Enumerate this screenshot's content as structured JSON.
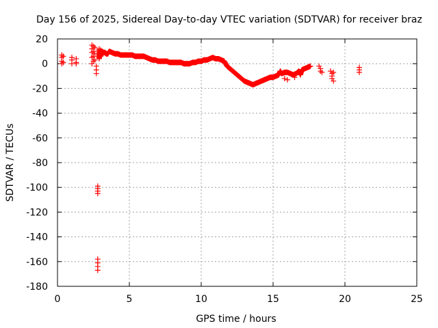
{
  "chart_data": {
    "type": "scatter",
    "title": "Day 156 of 2025, Sidereal Day-to-day VTEC variation (SDTVAR) for receiver braz",
    "xlabel": "GPS time / hours",
    "ylabel": "SDTVAR / TECUs",
    "xlim": [
      0,
      25
    ],
    "ylim": [
      -180,
      20
    ],
    "xticks": [
      0,
      5,
      10,
      15,
      20,
      25
    ],
    "yticks": [
      20,
      0,
      -20,
      -40,
      -60,
      -80,
      -100,
      -120,
      -140,
      -160,
      -180
    ],
    "grid": true,
    "marker": "plus",
    "color": "#ff0000",
    "series": [
      {
        "name": "SDTVAR",
        "points": [
          [
            0.3,
            7
          ],
          [
            0.3,
            5
          ],
          [
            0.3,
            2
          ],
          [
            0.3,
            0
          ],
          [
            0.4,
            6
          ],
          [
            0.4,
            1
          ],
          [
            1.0,
            3
          ],
          [
            1.0,
            0
          ],
          [
            1.0,
            5
          ],
          [
            1.3,
            4
          ],
          [
            1.3,
            1
          ],
          [
            1.3,
            0
          ],
          [
            2.4,
            15
          ],
          [
            2.4,
            12
          ],
          [
            2.4,
            9
          ],
          [
            2.4,
            5
          ],
          [
            2.4,
            0
          ],
          [
            2.5,
            14
          ],
          [
            2.5,
            10
          ],
          [
            2.5,
            6
          ],
          [
            2.5,
            2
          ],
          [
            2.6,
            13
          ],
          [
            2.6,
            8
          ],
          [
            2.6,
            3
          ],
          [
            2.7,
            -2
          ],
          [
            2.7,
            -5
          ],
          [
            2.7,
            -8
          ],
          [
            2.8,
            -99
          ],
          [
            2.8,
            -101
          ],
          [
            2.8,
            -103
          ],
          [
            2.8,
            -105
          ],
          [
            2.8,
            -158
          ],
          [
            2.8,
            -161
          ],
          [
            2.8,
            -164
          ],
          [
            2.8,
            -167
          ],
          [
            2.9,
            12
          ],
          [
            2.9,
            7
          ],
          [
            2.9,
            4
          ],
          [
            3.0,
            11
          ],
          [
            3.0,
            6
          ],
          [
            3.1,
            10
          ],
          [
            3.2,
            9
          ],
          [
            3.3,
            9
          ],
          [
            3.4,
            8
          ],
          [
            3.5,
            8
          ],
          [
            3.6,
            10
          ],
          [
            3.8,
            9
          ],
          [
            4.0,
            8
          ],
          [
            4.2,
            8
          ],
          [
            4.4,
            7
          ],
          [
            4.6,
            7
          ],
          [
            4.8,
            7
          ],
          [
            5.0,
            7
          ],
          [
            5.2,
            7
          ],
          [
            5.4,
            6
          ],
          [
            5.6,
            6
          ],
          [
            5.8,
            6
          ],
          [
            6.0,
            6
          ],
          [
            6.2,
            5
          ],
          [
            6.4,
            4
          ],
          [
            6.6,
            3
          ],
          [
            6.8,
            3
          ],
          [
            7.0,
            2
          ],
          [
            7.2,
            2
          ],
          [
            7.4,
            2
          ],
          [
            7.6,
            2
          ],
          [
            7.8,
            1
          ],
          [
            8.0,
            1
          ],
          [
            8.2,
            1
          ],
          [
            8.4,
            1
          ],
          [
            8.6,
            1
          ],
          [
            8.8,
            0
          ],
          [
            9.0,
            0
          ],
          [
            9.2,
            0
          ],
          [
            9.4,
            1
          ],
          [
            9.6,
            1
          ],
          [
            9.8,
            2
          ],
          [
            10.0,
            2
          ],
          [
            10.2,
            3
          ],
          [
            10.4,
            3
          ],
          [
            10.6,
            4
          ],
          [
            10.8,
            5
          ],
          [
            11.0,
            4
          ],
          [
            11.2,
            4
          ],
          [
            11.4,
            3
          ],
          [
            11.6,
            2
          ],
          [
            11.8,
            -2
          ],
          [
            12.0,
            -4
          ],
          [
            12.2,
            -6
          ],
          [
            12.4,
            -8
          ],
          [
            12.6,
            -10
          ],
          [
            12.8,
            -12
          ],
          [
            13.0,
            -14
          ],
          [
            13.2,
            -15
          ],
          [
            13.4,
            -16
          ],
          [
            13.6,
            -17
          ],
          [
            13.8,
            -16
          ],
          [
            14.0,
            -15
          ],
          [
            14.2,
            -14
          ],
          [
            14.4,
            -13
          ],
          [
            14.6,
            -12
          ],
          [
            14.8,
            -11
          ],
          [
            15.0,
            -11
          ],
          [
            15.2,
            -10
          ],
          [
            15.4,
            -9
          ],
          [
            15.6,
            -8
          ],
          [
            15.8,
            -7
          ],
          [
            16.0,
            -7
          ],
          [
            16.2,
            -8
          ],
          [
            16.4,
            -9
          ],
          [
            16.6,
            -8
          ],
          [
            16.8,
            -6
          ],
          [
            17.0,
            -5
          ],
          [
            17.2,
            -4
          ],
          [
            17.4,
            -3
          ],
          [
            17.6,
            -2
          ],
          [
            15.5,
            -6
          ],
          [
            15.8,
            -12
          ],
          [
            16.0,
            -13
          ],
          [
            16.5,
            -11
          ],
          [
            16.9,
            -9
          ],
          [
            18.2,
            -2
          ],
          [
            18.3,
            -4
          ],
          [
            18.3,
            -6
          ],
          [
            18.4,
            -7
          ],
          [
            19.0,
            -6
          ],
          [
            19.1,
            -8
          ],
          [
            19.1,
            -10
          ],
          [
            19.1,
            -12
          ],
          [
            19.2,
            -14
          ],
          [
            19.2,
            -7
          ],
          [
            21.0,
            -3
          ],
          [
            21.0,
            -5
          ],
          [
            21.0,
            -7
          ]
        ]
      }
    ]
  }
}
